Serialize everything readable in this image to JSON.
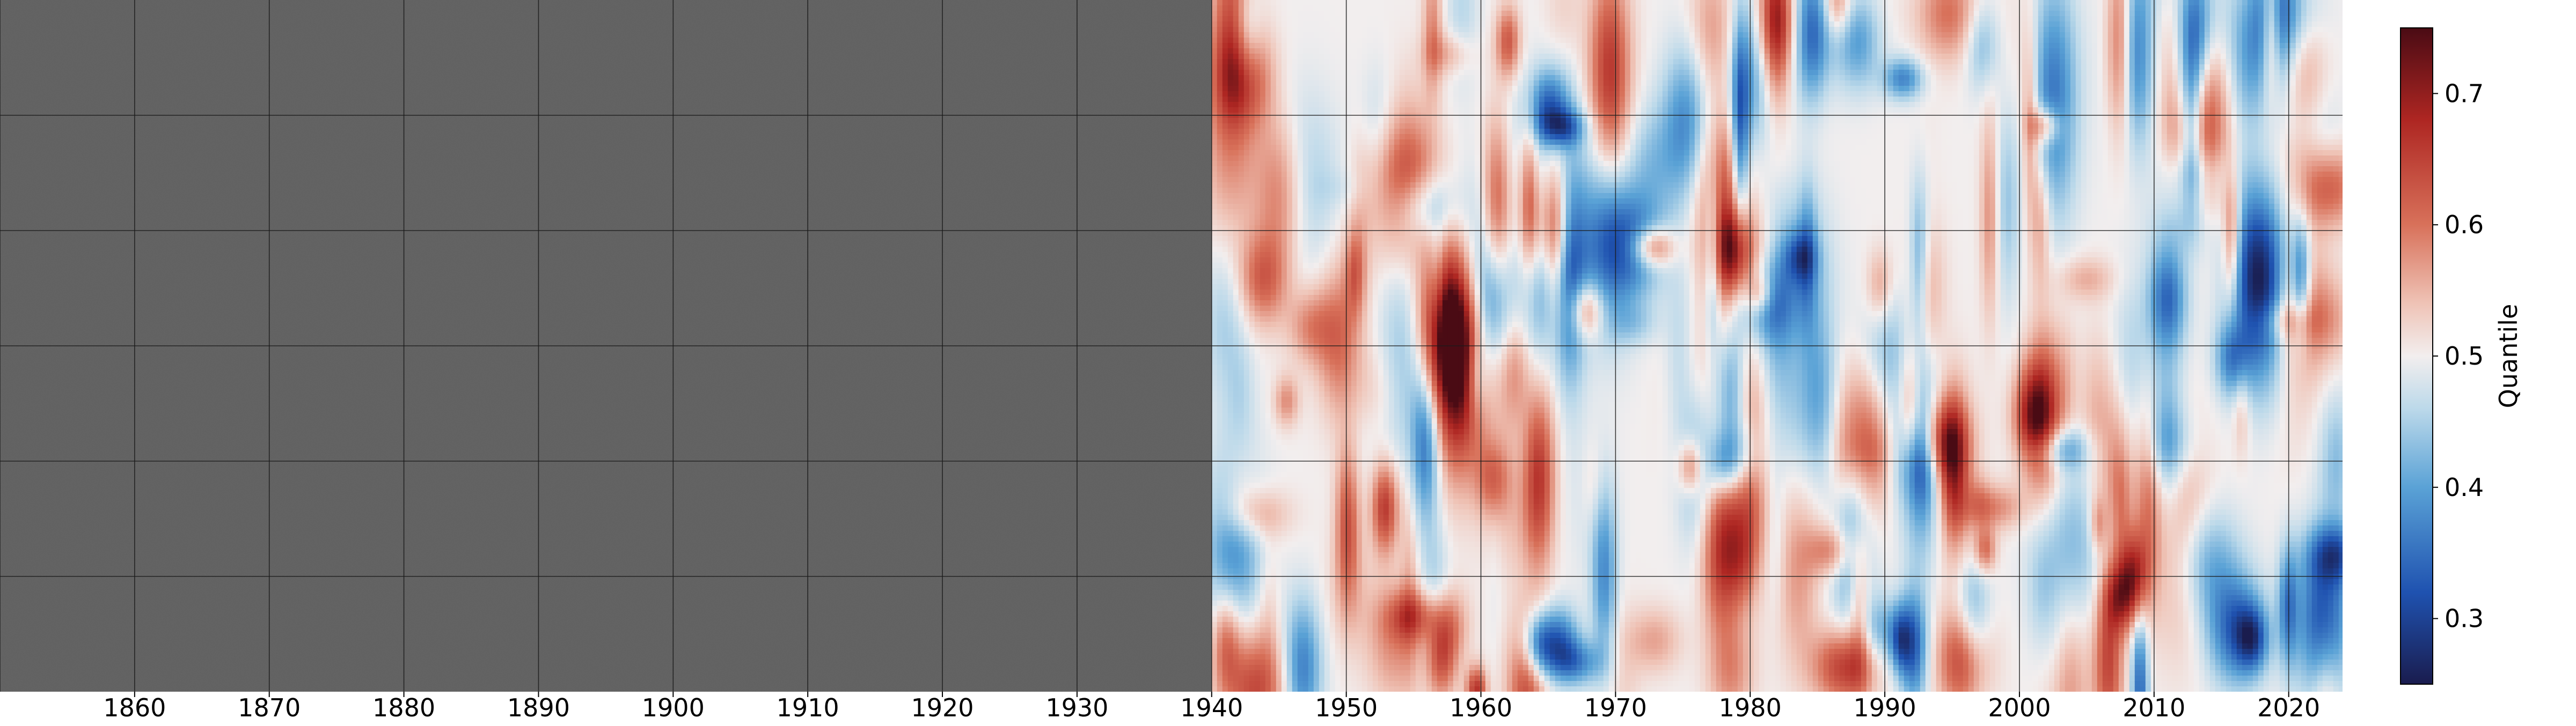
{
  "chart_data": {
    "type": "heatmap",
    "title": "",
    "xlabel": "",
    "ylabel": "",
    "xlim": [
      1850,
      2024
    ],
    "xticks": [
      1860,
      1870,
      1880,
      1890,
      1900,
      1910,
      1920,
      1930,
      1940,
      1950,
      1960,
      1970,
      1980,
      1990,
      2000,
      2010,
      2020
    ],
    "xtick_labels": [
      "1860",
      "1870",
      "1880",
      "1890",
      "1900",
      "1910",
      "1920",
      "1930",
      "1940",
      "1950",
      "1960",
      "1970",
      "1980",
      "1990",
      "2000",
      "2010",
      "2020"
    ],
    "data_start_x": 1940,
    "no_data_color": "#5f5f5f",
    "grid": true,
    "grid_columns_every": 10,
    "grid_rows": 6,
    "colorbar": {
      "label": "Quantile",
      "range": [
        0.25,
        0.75
      ],
      "ticks": [
        0.3,
        0.4,
        0.5,
        0.6,
        0.7
      ],
      "tick_labels": [
        "0.3",
        "0.4",
        "0.5",
        "0.6",
        "0.7"
      ],
      "colormap": "diverging-blue-white-red",
      "color_stops": [
        {
          "value": 0.25,
          "color": "#1a1c4e"
        },
        {
          "value": 0.32,
          "color": "#1f52b0"
        },
        {
          "value": 0.4,
          "color": "#5aa2d6"
        },
        {
          "value": 0.46,
          "color": "#bcd9ea"
        },
        {
          "value": 0.5,
          "color": "#f2eeee"
        },
        {
          "value": 0.54,
          "color": "#efc3b6"
        },
        {
          "value": 0.6,
          "color": "#d8715a"
        },
        {
          "value": 0.68,
          "color": "#ae2622"
        },
        {
          "value": 0.75,
          "color": "#4a0b14"
        }
      ]
    }
  }
}
